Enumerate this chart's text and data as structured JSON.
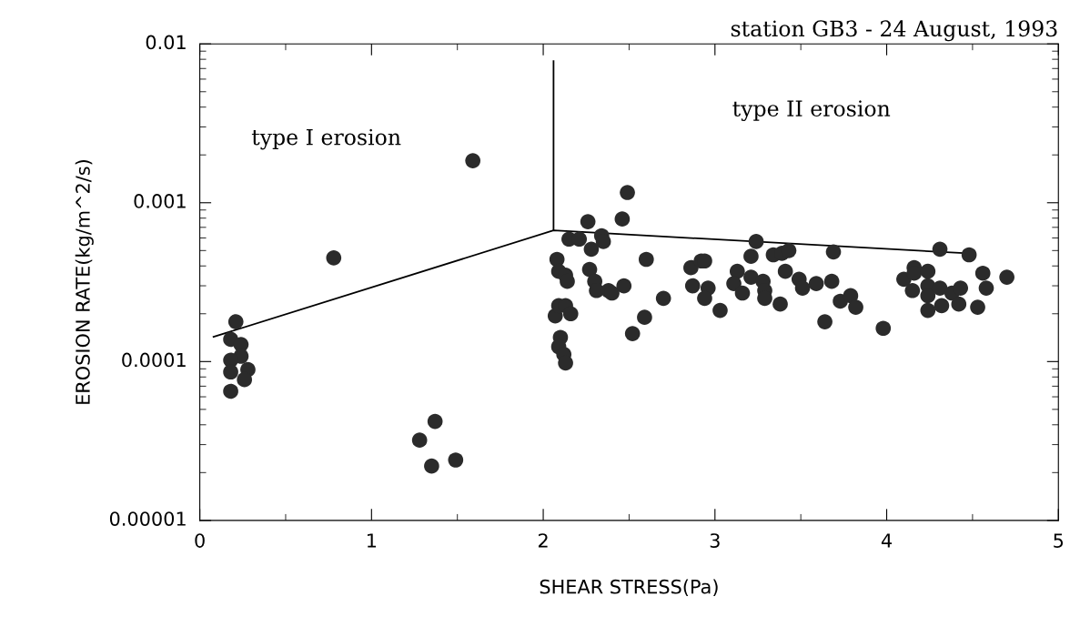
{
  "chart_data": {
    "type": "scatter",
    "title": "station GB3 - 24 August, 1993",
    "xlabel": "SHEAR STRESS(Pa)",
    "ylabel": "EROSION RATE(kg/m^2/s)",
    "annotations": [
      "type I erosion",
      "type II erosion"
    ],
    "log": "y",
    "xlim": [
      0,
      5
    ],
    "xticks": [
      0,
      1,
      2,
      3,
      4,
      5
    ],
    "ylim": [
      1e-05,
      0.01
    ],
    "yticks": [
      {
        "value": 1e-05,
        "label": "0.00001"
      },
      {
        "value": 0.0001,
        "label": "0.0001"
      },
      {
        "value": 0.001,
        "label": "0.001"
      },
      {
        "value": 0.01,
        "label": "0.01"
      }
    ],
    "grid": false,
    "legend": false,
    "series": [
      {
        "color": "#2b2b2b",
        "marker": "circle",
        "x": [
          0.21,
          0.18,
          0.24,
          0.24,
          0.18,
          0.18,
          0.28,
          0.26,
          0.18,
          0.78,
          1.59,
          1.37,
          1.28,
          1.35,
          1.49,
          2.49,
          2.26,
          2.46,
          2.15,
          2.21,
          2.34,
          2.35,
          2.28,
          2.08,
          2.27,
          2.09,
          2.13,
          2.14,
          2.3,
          2.31,
          2.38,
          2.4,
          2.47,
          2.6,
          2.7,
          2.59,
          2.52,
          2.07,
          2.09,
          2.13,
          2.16,
          2.1,
          2.09,
          2.12,
          2.13,
          2.86,
          2.92,
          2.94,
          2.87,
          2.96,
          2.94,
          3.03,
          3.13,
          3.11,
          3.16,
          3.21,
          3.21,
          3.24,
          3.28,
          3.29,
          3.29,
          3.34,
          3.39,
          3.43,
          3.41,
          3.38,
          3.49,
          3.51,
          3.59,
          3.68,
          3.69,
          3.64,
          3.73,
          3.79,
          3.82,
          3.98,
          4.1,
          4.16,
          4.16,
          4.24,
          4.15,
          4.24,
          4.24,
          4.31,
          4.38,
          4.43,
          4.42,
          4.32,
          4.24,
          4.31,
          4.48,
          4.56,
          4.58,
          4.53,
          4.7
        ],
        "values": [
          0.000178,
          0.000138,
          0.000128,
          0.000108,
          0.000102,
          8.6e-05,
          8.9e-05,
          7.7e-05,
          6.5e-05,
          0.00045,
          0.00184,
          4.2e-05,
          3.2e-05,
          2.2e-05,
          2.4e-05,
          0.00116,
          0.00076,
          0.00079,
          0.00059,
          0.00059,
          0.00062,
          0.00057,
          0.00051,
          0.00044,
          0.00038,
          0.00037,
          0.00035,
          0.00032,
          0.00032,
          0.00028,
          0.00028,
          0.00027,
          0.0003,
          0.00044,
          0.00025,
          0.00019,
          0.00015,
          0.000194,
          0.000225,
          0.000225,
          0.0002,
          0.000142,
          0.000124,
          0.000111,
          9.8e-05,
          0.00039,
          0.00043,
          0.00043,
          0.0003,
          0.00029,
          0.00025,
          0.00021,
          0.00037,
          0.00031,
          0.00027,
          0.00034,
          0.00046,
          0.00057,
          0.00032,
          0.00028,
          0.00025,
          0.00047,
          0.00048,
          0.0005,
          0.00037,
          0.00023,
          0.00033,
          0.00029,
          0.00031,
          0.00032,
          0.00049,
          0.000178,
          0.00024,
          0.00026,
          0.00022,
          0.000162,
          0.00033,
          0.00039,
          0.00036,
          0.00037,
          0.00028,
          0.0003,
          0.00026,
          0.00029,
          0.00027,
          0.00029,
          0.00023,
          0.000225,
          0.00021,
          0.00051,
          0.00047,
          0.00036,
          0.00029,
          0.00022,
          0.00034
        ]
      },
      {
        "type": "line",
        "color": "#000000",
        "line_style": "solid",
        "marker": "none",
        "x": [
          0.08,
          2.06,
          4.47
        ],
        "values": [
          0.000143,
          0.00067,
          0.00048
        ]
      },
      {
        "type": "line",
        "color": "#000000",
        "line_style": "solid",
        "marker": "none",
        "x": [
          2.06,
          2.06
        ],
        "values": [
          0.0078,
          0.00067
        ]
      }
    ]
  }
}
